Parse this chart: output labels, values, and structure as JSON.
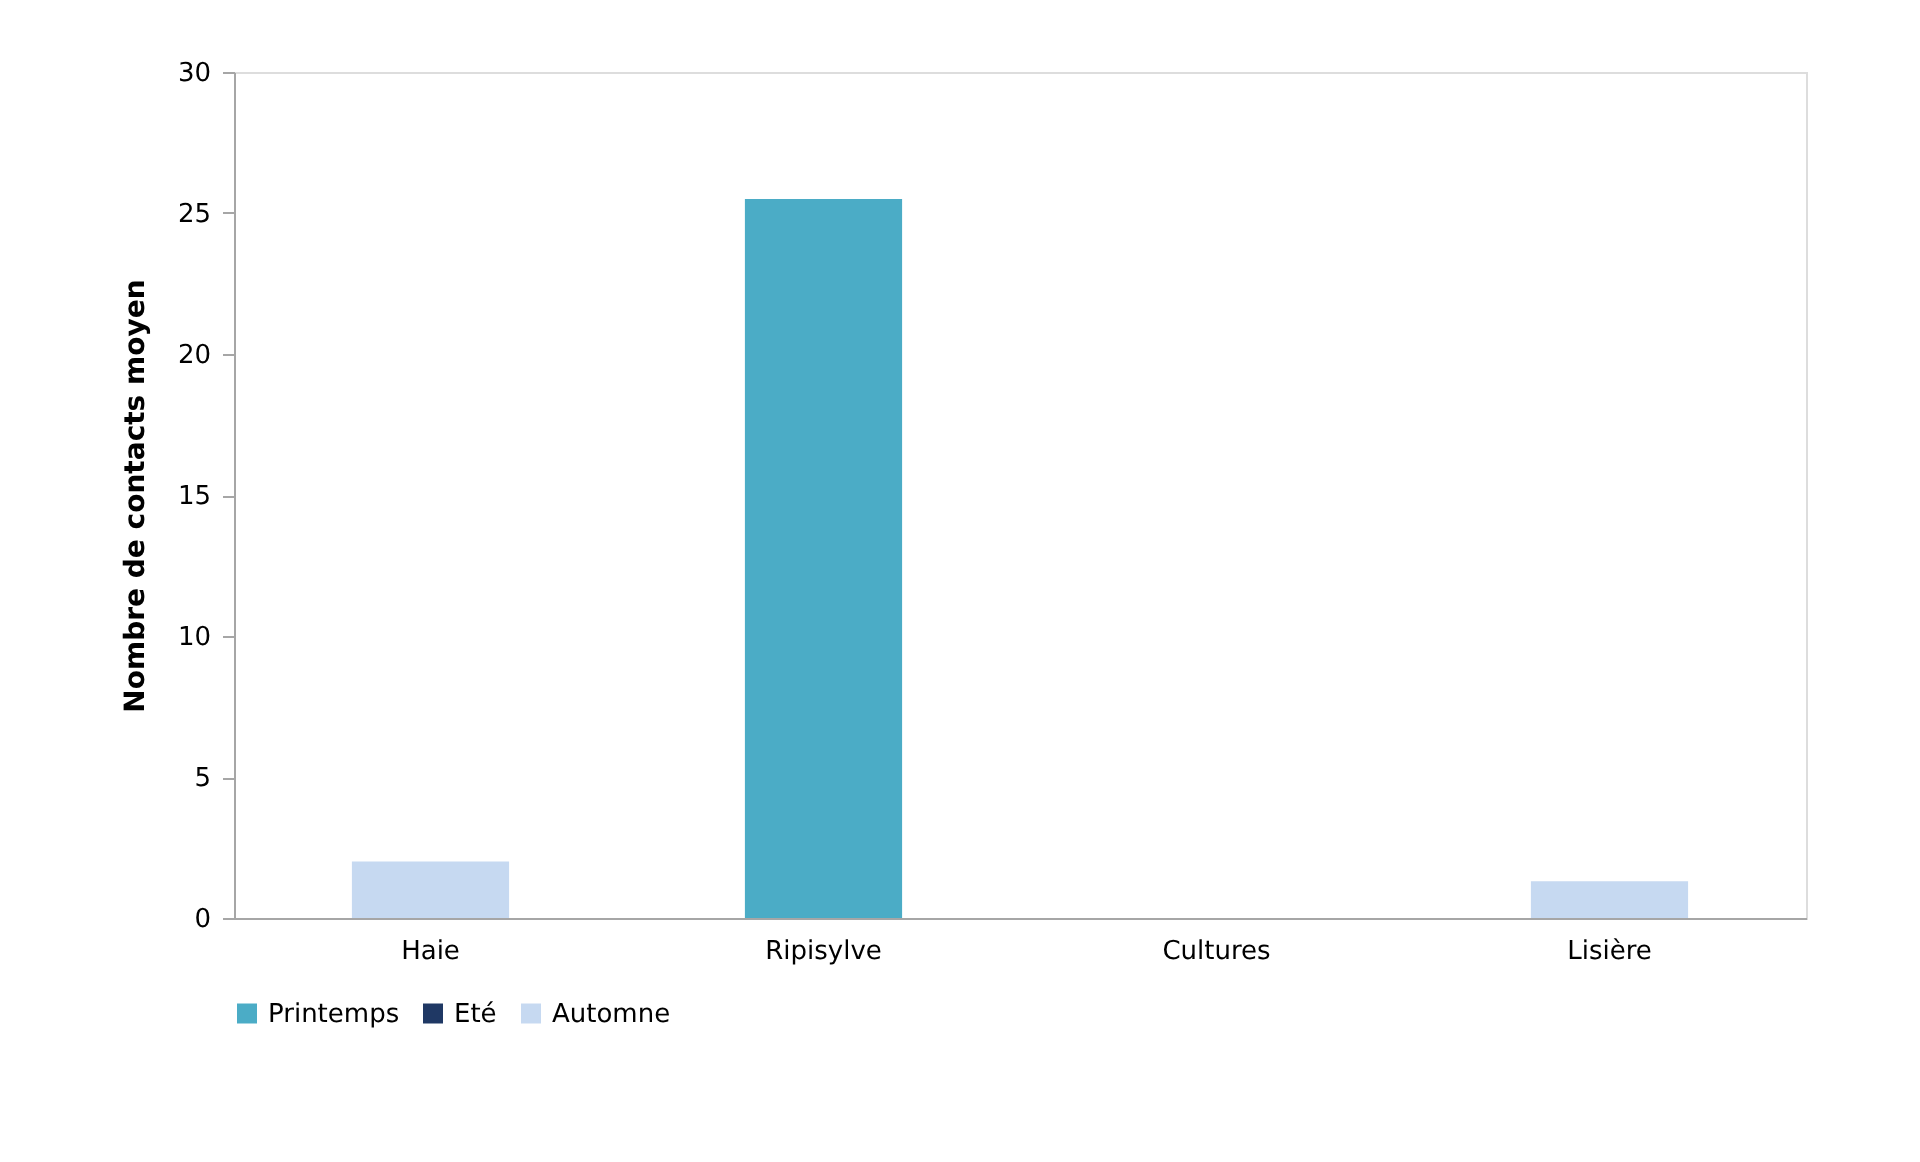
{
  "chart_data": {
    "type": "bar",
    "ylabel": "Nombre de contacts moyen",
    "categories": [
      "Haie",
      "Ripisylve",
      "Cultures",
      "Lisière"
    ],
    "series": [
      {
        "name": "Printemps",
        "color": "#4bacc6",
        "values": [
          0,
          25.5,
          0,
          0
        ]
      },
      {
        "name": "Eté",
        "color": "#1f3864",
        "values": [
          0,
          0,
          0,
          0
        ]
      },
      {
        "name": "Automne",
        "color": "#c6d9f1",
        "values": [
          2,
          0,
          0,
          1.3
        ]
      }
    ],
    "ylim": [
      0,
      30
    ],
    "yticks": [
      0,
      5,
      10,
      15,
      20,
      25,
      30
    ],
    "grid": false,
    "legend": "bottom"
  }
}
